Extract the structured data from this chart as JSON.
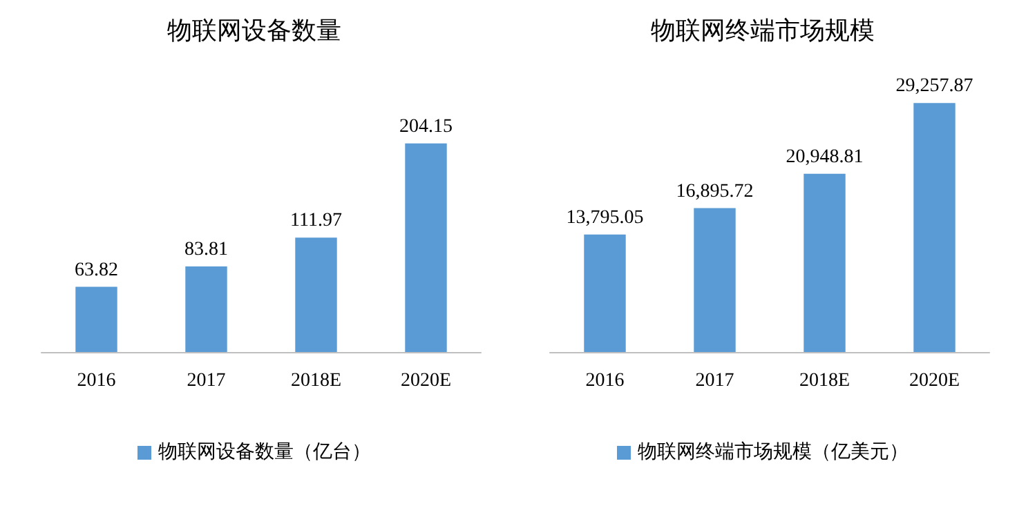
{
  "chart_data": [
    {
      "type": "bar",
      "title": "物联网设备数量",
      "categories": [
        "2016",
        "2017",
        "2018E",
        "2020E"
      ],
      "series": [
        {
          "name": "物联网设备数量（亿台）",
          "color": "#5b9bd5",
          "values": [
            63.82,
            83.81,
            111.97,
            204.15
          ]
        }
      ],
      "data_labels": true,
      "legend": "bottom"
    },
    {
      "type": "bar",
      "title": "物联网终端市场规模",
      "categories": [
        "2016",
        "2017",
        "2018E",
        "2020E"
      ],
      "series": [
        {
          "name": "物联网终端市场规模（亿美元）",
          "color": "#5b9bd5",
          "values": [
            13795.05,
            16895.72,
            20948.81,
            29257.87
          ],
          "value_labels": [
            "13,795.05",
            "16,895.72",
            "20,948.81",
            "29,257.87"
          ]
        }
      ],
      "legend": "bottom"
    }
  ]
}
